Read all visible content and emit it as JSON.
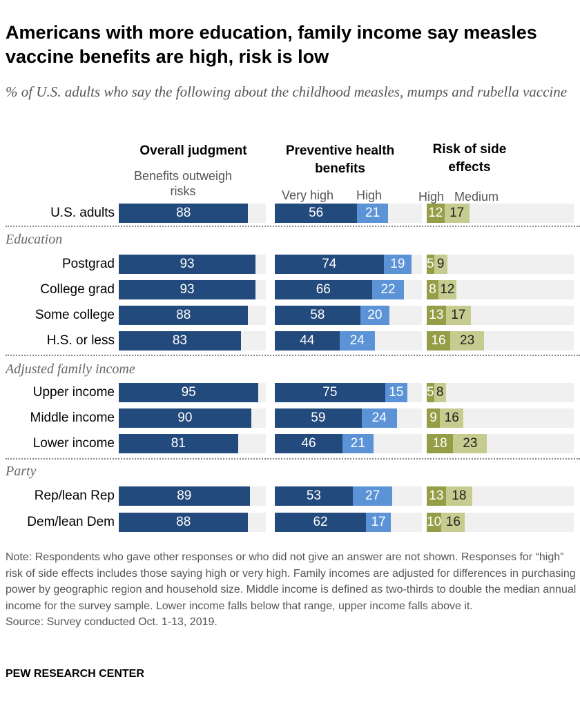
{
  "chart_data": {
    "type": "bar",
    "title": "Americans with more education, family income say measles vaccine benefits are high, risk is low",
    "subtitle": "% of U.S. adults who say the following about the childhood measles, mumps and rubella vaccine",
    "panels": [
      {
        "title": "Overall judgment",
        "series": [
          "Benefits outweigh risks"
        ]
      },
      {
        "title": "Preventive health benefits",
        "series": [
          "Very high",
          "High"
        ]
      },
      {
        "title": "Risk of side effects",
        "series": [
          "High",
          "Medium"
        ]
      }
    ],
    "sections": [
      "Education",
      "Adjusted family income",
      "Party"
    ],
    "rows": [
      {
        "label": "U.S. adults",
        "section": null,
        "overall": [
          88
        ],
        "benefits": [
          56,
          21
        ],
        "risk": [
          12,
          17
        ]
      },
      {
        "label": "Postgrad",
        "section": "Education",
        "overall": [
          93
        ],
        "benefits": [
          74,
          19
        ],
        "risk": [
          5,
          9
        ]
      },
      {
        "label": "College grad",
        "section": "Education",
        "overall": [
          93
        ],
        "benefits": [
          66,
          22
        ],
        "risk": [
          8,
          12
        ]
      },
      {
        "label": "Some college",
        "section": "Education",
        "overall": [
          88
        ],
        "benefits": [
          58,
          20
        ],
        "risk": [
          13,
          17
        ]
      },
      {
        "label": "H.S. or less",
        "section": "Education",
        "overall": [
          83
        ],
        "benefits": [
          44,
          24
        ],
        "risk": [
          16,
          23
        ]
      },
      {
        "label": "Upper income",
        "section": "Adjusted family income",
        "overall": [
          95
        ],
        "benefits": [
          75,
          15
        ],
        "risk": [
          5,
          8
        ]
      },
      {
        "label": "Middle income",
        "section": "Adjusted family income",
        "overall": [
          90
        ],
        "benefits": [
          59,
          24
        ],
        "risk": [
          9,
          16
        ]
      },
      {
        "label": "Lower income",
        "section": "Adjusted family income",
        "overall": [
          81
        ],
        "benefits": [
          46,
          21
        ],
        "risk": [
          18,
          23
        ]
      },
      {
        "label": "Rep/lean Rep",
        "section": "Party",
        "overall": [
          89
        ],
        "benefits": [
          53,
          27
        ],
        "risk": [
          13,
          18
        ]
      },
      {
        "label": "Dem/lean Dem",
        "section": "Party",
        "overall": [
          88
        ],
        "benefits": [
          62,
          17
        ],
        "risk": [
          10,
          16
        ]
      }
    ],
    "xlim": [
      0,
      100
    ],
    "colors": {
      "overall": "#234a7c",
      "very_high": "#234a7c",
      "high_benefit": "#5b93d6",
      "high_risk": "#959d47",
      "medium_risk": "#c6cc8f",
      "track": "#f0f0f0"
    }
  },
  "note": "Note: Respondents who gave other responses or who did not give an answer are not shown. Responses for “high” risk of side effects includes those saying high or very high. Family incomes are adjusted for differences in purchasing power by geographic region and household size. Middle income is defined as two-thirds to double the median annual income for the survey sample. Lower income falls below that range, upper income falls above it.",
  "source": "Source: Survey conducted Oct. 1-13, 2019.",
  "brand": "PEW RESEARCH CENTER"
}
